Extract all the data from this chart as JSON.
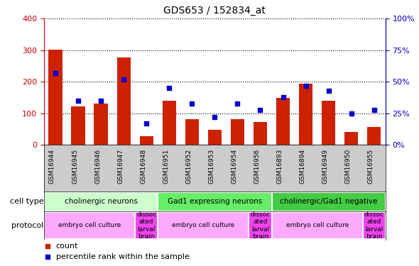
{
  "title": "GDS653 / 152834_at",
  "samples": [
    "GSM16944",
    "GSM16945",
    "GSM16946",
    "GSM16947",
    "GSM16948",
    "GSM16951",
    "GSM16952",
    "GSM16953",
    "GSM16954",
    "GSM16956",
    "GSM16893",
    "GSM16894",
    "GSM16949",
    "GSM16950",
    "GSM16955"
  ],
  "counts": [
    302,
    122,
    132,
    278,
    28,
    140,
    82,
    48,
    82,
    72,
    148,
    195,
    140,
    42,
    58
  ],
  "percentile": [
    57,
    35,
    35,
    52,
    17,
    45,
    33,
    22,
    33,
    28,
    38,
    47,
    43,
    25,
    28
  ],
  "cell_type_groups": [
    {
      "label": "cholinergic neurons",
      "start": 0,
      "end": 5,
      "color": "#ccffcc"
    },
    {
      "label": "Gad1 expressing neurons",
      "start": 5,
      "end": 10,
      "color": "#66ee66"
    },
    {
      "label": "cholinergic/Gad1 negative",
      "start": 10,
      "end": 15,
      "color": "#44cc44"
    }
  ],
  "protocol_groups": [
    {
      "label": "embryo cell culture",
      "start": 0,
      "end": 4,
      "color": "#ffaaff"
    },
    {
      "label": "dissoc\nated\nlarval\nbrain",
      "start": 4,
      "end": 5,
      "color": "#ee44ee"
    },
    {
      "label": "embryo cell culture",
      "start": 5,
      "end": 9,
      "color": "#ffaaff"
    },
    {
      "label": "dissoc\nated\nlarval\nbrain",
      "start": 9,
      "end": 10,
      "color": "#ee44ee"
    },
    {
      "label": "embryo cell culture",
      "start": 10,
      "end": 14,
      "color": "#ffaaff"
    },
    {
      "label": "dissoc\nated\nlarval\nbrain",
      "start": 14,
      "end": 15,
      "color": "#ee44ee"
    }
  ],
  "bar_color": "#cc2200",
  "dot_color": "#0000cc",
  "left_axis_color": "#cc0000",
  "right_axis_color": "#0000cc",
  "ylim_left": [
    0,
    400
  ],
  "ylim_right": [
    0,
    100
  ],
  "yticks_left": [
    0,
    100,
    200,
    300,
    400
  ],
  "yticks_right": [
    0,
    25,
    50,
    75,
    100
  ],
  "xtick_bg": "#cccccc",
  "fig_bg": "#ffffff"
}
